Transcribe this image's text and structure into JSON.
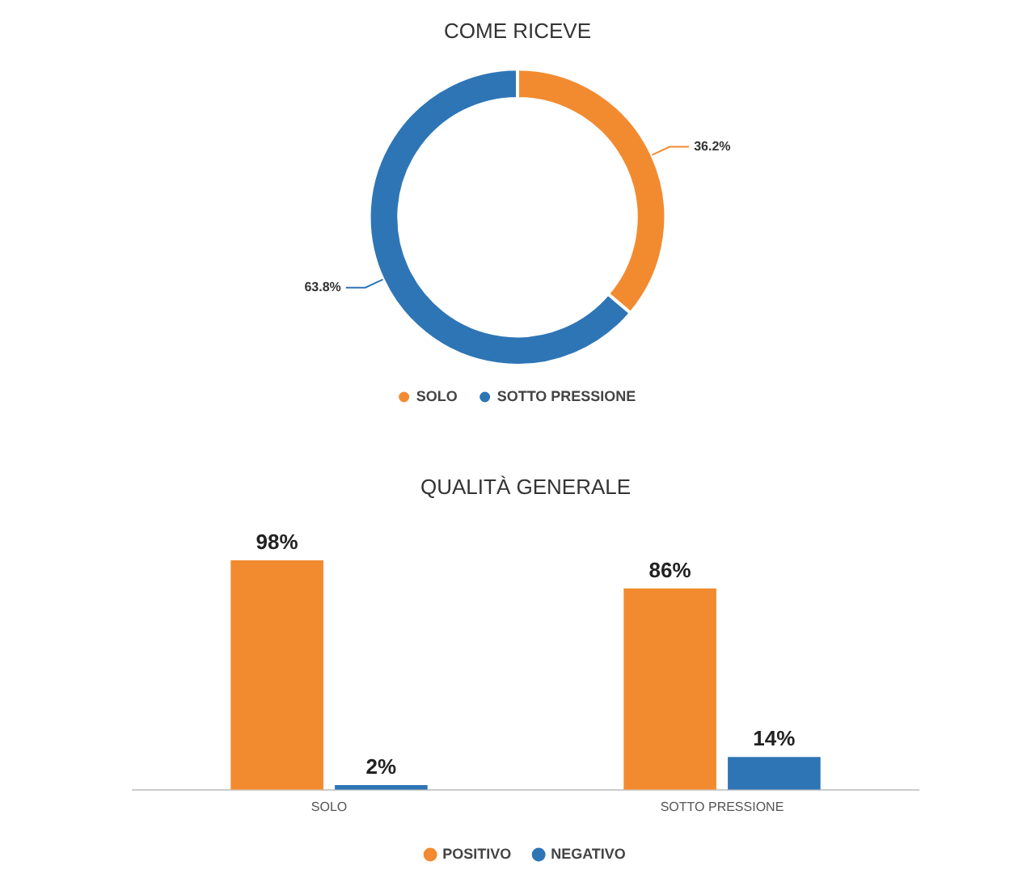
{
  "chart_data": [
    {
      "type": "donut",
      "title": "COME RICEVE",
      "categories": [
        "SOLO",
        "SOTTO PRESSIONE"
      ],
      "values": [
        36.2,
        63.8
      ],
      "colors": [
        "#f28b30",
        "#2e75b6"
      ],
      "value_labels": [
        "36.2%",
        "63.8%"
      ],
      "legend": "bottom"
    },
    {
      "type": "bar",
      "title": "QUALITÀ GENERALE",
      "categories": [
        "SOLO",
        "SOTTO PRESSIONE"
      ],
      "series": [
        {
          "name": "POSITIVO",
          "color": "#f28b30",
          "values": [
            98,
            86
          ],
          "value_labels": [
            "98%",
            "86%"
          ]
        },
        {
          "name": "NEGATIVO",
          "color": "#2e75b6",
          "values": [
            2,
            14
          ],
          "value_labels": [
            "2%",
            "14%"
          ]
        }
      ],
      "legend": "bottom",
      "grid": false
    }
  ]
}
